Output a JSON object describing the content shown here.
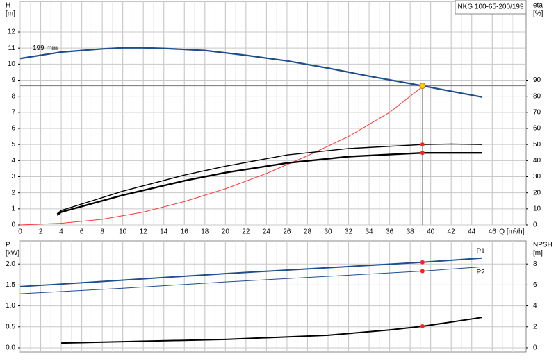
{
  "chart_data": [
    {
      "type": "line",
      "title": "NKG 100-65-200/199",
      "x_label": "Q [m³/h]",
      "y_label": [
        "H",
        "[m]"
      ],
      "y2_label": [
        "eta",
        "[%]"
      ],
      "xlim": [
        0,
        49.3
      ],
      "ylim": [
        0,
        13.9
      ],
      "y2lim": [
        0,
        139
      ],
      "xticks": [
        0,
        2,
        4,
        6,
        8,
        10,
        12,
        14,
        16,
        18,
        20,
        22,
        24,
        26,
        28,
        30,
        32,
        34,
        36,
        38,
        40,
        42,
        44,
        46
      ],
      "yticks": [
        0,
        1,
        2,
        3,
        4,
        5,
        6,
        7,
        8,
        9,
        10,
        11,
        12
      ],
      "y2ticks": [
        0,
        10,
        20,
        30,
        40,
        50,
        60,
        70,
        80,
        90
      ],
      "grid": true,
      "duty_x": 39.2,
      "duty_color": "#ffcc00",
      "series": [
        {
          "name": "199 mm",
          "color": "#1f4e8c",
          "line_width": 2.2,
          "x": [
            0,
            4,
            8,
            10,
            12,
            14,
            18,
            22,
            26,
            30,
            34,
            39.2,
            45
          ],
          "values": [
            10.35,
            10.75,
            10.95,
            11.02,
            11.02,
            10.98,
            10.85,
            10.55,
            10.2,
            9.75,
            9.25,
            8.65,
            7.95
          ],
          "duty": 8.65
        },
        {
          "color": "#ff3333",
          "line_width": 1,
          "axis": "y2",
          "x": [
            0,
            4,
            8,
            12,
            16,
            20,
            24,
            28,
            32,
            36,
            39.2
          ],
          "values": [
            0,
            1,
            3.5,
            8,
            14.5,
            22.5,
            32,
            43,
            55,
            70,
            86
          ]
        },
        {
          "color": "#000000",
          "line_width": 1.4,
          "axis": "y2",
          "x": [
            3.6,
            4,
            10,
            16,
            20,
            26,
            32,
            39.2,
            42,
            45
          ],
          "values": [
            7,
            9,
            21,
            31,
            36.5,
            43.5,
            47.5,
            50,
            50.3,
            50
          ],
          "duty": 50
        },
        {
          "color": "#000000",
          "line_width": 2.4,
          "axis": "y2",
          "x": [
            3.6,
            4,
            10,
            16,
            20,
            26,
            32,
            39.2,
            45
          ],
          "values": [
            6,
            8,
            18.5,
            27.5,
            32.5,
            38.5,
            42.5,
            44.8,
            44.8
          ],
          "duty": 44.8
        }
      ]
    },
    {
      "type": "line",
      "y_label": [
        "P",
        "[kW]"
      ],
      "y2_label": [
        "NPSH",
        "[m]"
      ],
      "xlim": [
        0,
        49.3
      ],
      "ylim": [
        -0.1,
        2.55
      ],
      "y2lim": [
        -0.4,
        10.2
      ],
      "xticks": [
        0,
        2,
        4,
        6,
        8,
        10,
        12,
        14,
        16,
        18,
        20,
        22,
        24,
        26,
        28,
        30,
        32,
        34,
        36,
        38,
        40,
        42,
        44,
        46
      ],
      "x_tick_labels": false,
      "yticks": [
        {
          "value": 0,
          "label": "0.0"
        },
        0.5,
        {
          "value": 1,
          "label": "1.0"
        },
        1.5,
        {
          "value": 2,
          "label": "2.0"
        }
      ],
      "y2ticks": [
        0,
        2,
        4,
        6,
        8
      ],
      "grid": true,
      "duty_x": 39.2,
      "series": [
        {
          "name": "P1",
          "color": "#1f4e8c",
          "line_width": 2,
          "x": [
            0,
            4,
            20,
            39.2,
            45
          ],
          "values": [
            1.46,
            1.52,
            1.77,
            2.04,
            2.14
          ],
          "duty": 2.04
        },
        {
          "name": "P2",
          "color": "#1f4e8c",
          "line_width": 1,
          "x": [
            0,
            10,
            20,
            39.2,
            45
          ],
          "values": [
            1.29,
            1.42,
            1.57,
            1.83,
            1.93
          ],
          "duty": 1.83
        },
        {
          "color": "#000000",
          "line_width": 2,
          "axis": "y2",
          "x": [
            4,
            20,
            30,
            36,
            39.2,
            45
          ],
          "values": [
            0.45,
            0.8,
            1.2,
            1.7,
            2.05,
            2.9
          ],
          "duty": 2.05
        }
      ]
    }
  ]
}
